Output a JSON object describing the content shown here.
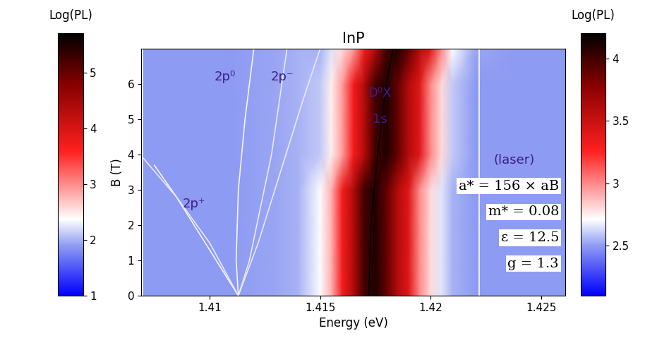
{
  "chart_data": {
    "type": "heatmap",
    "title": "InP",
    "x_label": "Energy (eV)",
    "y_label": "B (T)",
    "xlim": [
      1.4069,
      1.4261
    ],
    "xticks": [
      1.41,
      1.415,
      1.42,
      1.425
    ],
    "ylim": [
      0,
      7
    ],
    "yticks": [
      0,
      1,
      2,
      3,
      4,
      5,
      6
    ],
    "grid": false,
    "heatmap": {
      "x": [
        1.407,
        1.409,
        1.411,
        1.413,
        1.414,
        1.415,
        1.4155,
        1.416,
        1.4165,
        1.417,
        1.4175,
        1.418,
        1.4185,
        1.419,
        1.4195,
        1.42,
        1.4205,
        1.421,
        1.422,
        1.424,
        1.427
      ],
      "y": [
        0,
        1,
        2,
        3,
        4,
        5,
        6,
        7
      ],
      "values": [
        [
          2.5,
          2.5,
          2.5,
          2.52,
          2.55,
          2.7,
          2.9,
          3.3,
          3.6,
          4.0,
          4.1,
          3.9,
          3.6,
          3.4,
          3.0,
          2.8,
          2.65,
          2.55,
          2.5,
          2.5,
          2.5
        ],
        [
          2.5,
          2.5,
          2.5,
          2.52,
          2.55,
          2.7,
          2.9,
          3.3,
          3.6,
          4.0,
          4.1,
          3.9,
          3.6,
          3.4,
          3.0,
          2.8,
          2.65,
          2.55,
          2.5,
          2.5,
          2.5
        ],
        [
          2.5,
          2.5,
          2.5,
          2.52,
          2.55,
          2.7,
          2.9,
          3.3,
          3.6,
          4.0,
          4.1,
          3.9,
          3.6,
          3.4,
          3.0,
          2.8,
          2.65,
          2.55,
          2.5,
          2.5,
          2.5
        ],
        [
          2.5,
          2.5,
          2.5,
          2.52,
          2.55,
          2.7,
          2.9,
          3.3,
          3.6,
          4.0,
          4.1,
          3.9,
          3.6,
          3.4,
          3.0,
          2.8,
          2.65,
          2.55,
          2.5,
          2.5,
          2.5
        ],
        [
          2.5,
          2.5,
          2.5,
          2.52,
          2.55,
          2.6,
          2.75,
          2.95,
          3.3,
          3.6,
          4.0,
          4.1,
          3.9,
          3.6,
          3.4,
          3.0,
          2.8,
          2.6,
          2.5,
          2.5,
          2.5
        ],
        [
          2.5,
          2.5,
          2.5,
          2.52,
          2.55,
          2.6,
          2.75,
          2.95,
          3.3,
          3.6,
          4.0,
          4.1,
          3.9,
          3.6,
          3.4,
          3.0,
          2.8,
          2.6,
          2.5,
          2.5,
          2.5
        ],
        [
          2.5,
          2.5,
          2.5,
          2.52,
          2.55,
          2.6,
          2.75,
          2.95,
          3.3,
          3.6,
          4.0,
          4.1,
          3.9,
          3.6,
          3.4,
          3.0,
          2.8,
          2.6,
          2.5,
          2.5,
          2.5
        ],
        [
          2.5,
          2.5,
          2.5,
          2.52,
          2.55,
          2.55,
          2.65,
          2.8,
          2.95,
          3.3,
          3.6,
          4.0,
          4.1,
          3.9,
          3.6,
          3.4,
          3.0,
          2.7,
          2.52,
          2.5,
          2.5
        ]
      ]
    },
    "colorbars": [
      {
        "label": "Log(PL)",
        "range": [
          1,
          5.7
        ],
        "ticks": [
          1,
          2,
          3,
          4,
          5
        ]
      },
      {
        "label": "Log(PL)",
        "range": [
          2.1,
          4.2
        ],
        "ticks": [
          2.5,
          3,
          3.5,
          4
        ]
      }
    ],
    "series": [
      {
        "x": [
          1.4113,
          1.4105,
          1.4095,
          1.4085,
          1.4075
        ],
        "values": [
          0,
          0.8,
          1.8,
          2.8,
          3.7
        ],
        "color": "#f4f4ff"
      },
      {
        "x": [
          1.4113,
          1.41,
          1.4085,
          1.407
        ],
        "values": [
          0,
          1.5,
          2.8,
          3.9
        ],
        "color": "#e6e8fb"
      },
      {
        "x": [
          1.4113,
          1.4112,
          1.4113,
          1.4116,
          1.412
        ],
        "values": [
          0,
          1,
          3,
          5,
          7
        ],
        "color": "#f4f4ff"
      },
      {
        "x": [
          1.4113,
          1.4122,
          1.4132,
          1.4142,
          1.415
        ],
        "values": [
          0,
          1.5,
          3.5,
          5.5,
          7
        ],
        "color": "#e6e8fb"
      },
      {
        "x": [
          1.4113,
          1.4118,
          1.4128,
          1.4135
        ],
        "values": [
          0,
          1,
          4,
          7
        ],
        "color": "#e6e8fb"
      },
      {
        "x": [
          1.4222,
          1.4222
        ],
        "values": [
          0,
          7
        ],
        "color": "#ffffff"
      },
      {
        "x": [
          1.4172,
          1.4173,
          1.4176,
          1.418,
          1.4183
        ],
        "values": [
          0,
          2,
          4,
          6,
          7
        ],
        "color": "#000000"
      }
    ],
    "annotations": [
      {
        "text": "2p⁰",
        "x": 1.4107,
        "y": 6.2
      },
      {
        "text": "2p⁻",
        "x": 1.4133,
        "y": 6.2
      },
      {
        "text": "D⁰X",
        "x": 1.4177,
        "y": 5.75
      },
      {
        "text": "1s",
        "x": 1.4177,
        "y": 5.0
      },
      {
        "text": "(laser)",
        "x": 1.4238,
        "y": 3.85
      },
      {
        "text": "2p⁺",
        "x": 1.4093,
        "y": 2.6
      }
    ],
    "parameters": [
      "a* = 156 × aB",
      "m* = 0.08",
      "ε = 12.5",
      "g = 1.3"
    ]
  }
}
